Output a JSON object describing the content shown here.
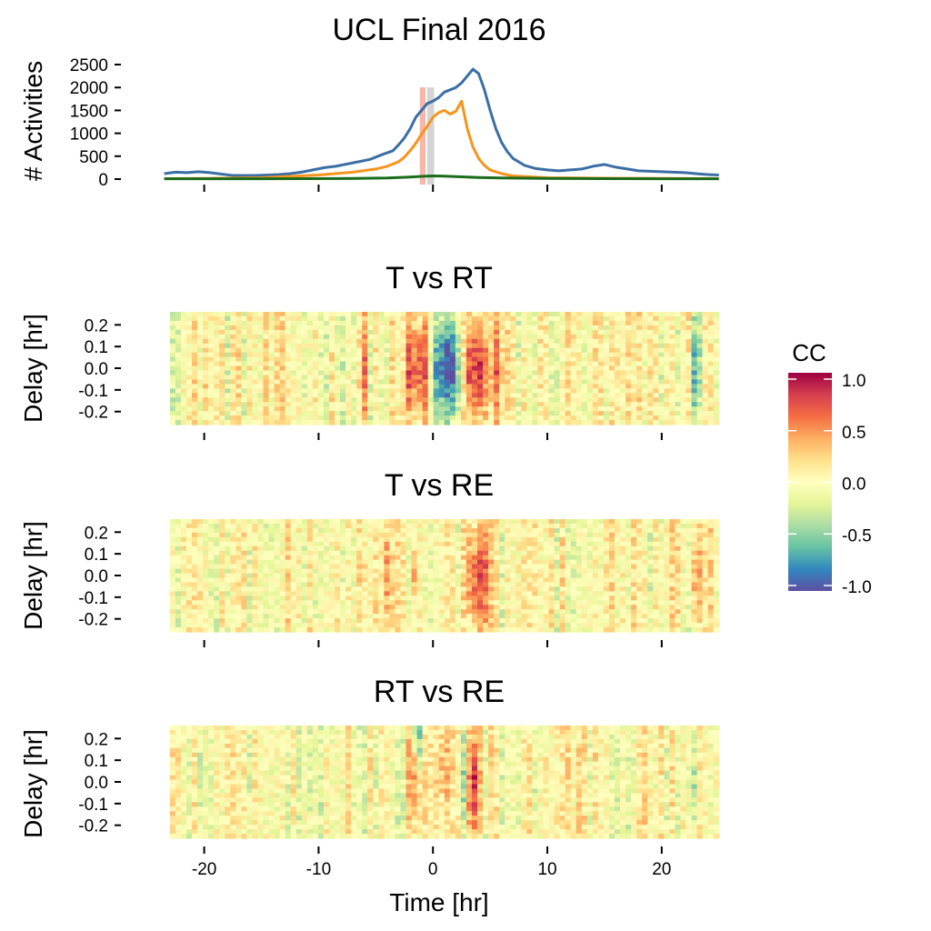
{
  "figure_title": "UCL Final 2016",
  "chart_data": [
    {
      "id": "activities",
      "type": "line",
      "title": "UCL Final 2016",
      "ylabel": "# Activities",
      "xlim": [
        -24.5,
        25.5
      ],
      "ylim": [
        0,
        2600
      ],
      "yticks": [
        0,
        500,
        1000,
        1500,
        2000,
        2500
      ],
      "xticks": [
        -20,
        -10,
        0,
        10,
        20
      ],
      "colors": {
        "blue": "#3b6ea5",
        "orange": "#f7941d",
        "green": "#1a6b1a"
      },
      "highlight_bands": [
        {
          "x": [
            -1.15,
            -0.65
          ],
          "color": "#f4a99b"
        },
        {
          "x": [
            -0.5,
            0.1
          ],
          "color": "#cccccc"
        }
      ],
      "series": [
        {
          "color": "#3b6ea5",
          "x": [
            -23.5,
            -22.5,
            -21.5,
            -20.5,
            -19.5,
            -18.5,
            -17.5,
            -16.5,
            -15.5,
            -14.5,
            -13.5,
            -12.5,
            -11.5,
            -10.5,
            -9.5,
            -8.5,
            -7.5,
            -6.5,
            -5.5,
            -4.5,
            -3.5,
            -3.0,
            -2.5,
            -2.0,
            -1.5,
            -1.0,
            -0.5,
            0.0,
            0.5,
            1.0,
            1.5,
            2.0,
            2.5,
            3.0,
            3.5,
            4.0,
            4.5,
            5.0,
            5.5,
            6.0,
            6.5,
            7.0,
            8.0,
            9.0,
            10.0,
            11.0,
            12.0,
            13.0,
            14.0,
            15.0,
            16.0,
            17.0,
            18.0,
            19.0,
            20.0,
            21.0,
            22.0,
            23.0,
            24.0,
            25.0
          ],
          "y": [
            120,
            150,
            140,
            160,
            140,
            110,
            80,
            80,
            80,
            90,
            100,
            120,
            150,
            200,
            250,
            280,
            330,
            380,
            430,
            530,
            620,
            750,
            900,
            1100,
            1350,
            1500,
            1650,
            1700,
            1780,
            1900,
            1950,
            2000,
            2100,
            2250,
            2400,
            2300,
            1950,
            1500,
            1100,
            800,
            600,
            450,
            300,
            230,
            200,
            180,
            200,
            220,
            280,
            320,
            260,
            220,
            180,
            170,
            160,
            150,
            140,
            120,
            100,
            90
          ]
        },
        {
          "color": "#f7941d",
          "x": [
            -23.5,
            -20,
            -15,
            -10,
            -7,
            -5,
            -4,
            -3,
            -2.5,
            -2,
            -1.5,
            -1,
            -0.5,
            0,
            0.5,
            1,
            1.5,
            2,
            2.5,
            3,
            3.5,
            4,
            4.5,
            5,
            6,
            7,
            10,
            15,
            20,
            25
          ],
          "y": [
            10,
            15,
            30,
            90,
            150,
            220,
            280,
            380,
            480,
            620,
            780,
            980,
            1150,
            1350,
            1450,
            1500,
            1420,
            1480,
            1700,
            1100,
            700,
            450,
            300,
            200,
            120,
            70,
            30,
            20,
            15,
            10
          ]
        },
        {
          "color": "#1a6b1a",
          "x": [
            -23.5,
            -15,
            -8,
            -4,
            -2,
            -1,
            0,
            1,
            2,
            3,
            4,
            6,
            10,
            15,
            20,
            25
          ],
          "y": [
            8,
            8,
            12,
            25,
            45,
            60,
            70,
            65,
            55,
            45,
            35,
            25,
            15,
            10,
            8,
            8
          ]
        }
      ]
    },
    {
      "id": "t_vs_rt",
      "type": "heatmap",
      "title": "T vs RT",
      "ylabel": "Delay [hr]",
      "xlim": [
        -24.5,
        25.5
      ],
      "ylim": [
        -0.26,
        0.26
      ],
      "yticks": [
        0.2,
        0.1,
        0.0,
        -0.1,
        -0.2
      ],
      "ytick_labels": [
        "0.2",
        "0.1",
        "0.0",
        "-0.1",
        "-0.2"
      ],
      "xticks": [
        -20,
        -10,
        0,
        10,
        20
      ],
      "cell_grid": {
        "x_from": -23.0,
        "x_to": 25.0,
        "x_cells": 100,
        "y_cells": 25
      },
      "features": [
        {
          "x": -1.0,
          "delay": 0.0,
          "width": 0.5,
          "value": 0.9
        },
        {
          "x": -2.0,
          "delay": 0.0,
          "width": 0.4,
          "value": 0.7
        },
        {
          "x": 0.8,
          "delay": 0.0,
          "width": 1.0,
          "value": -0.9
        },
        {
          "x": 1.8,
          "delay": 0.0,
          "width": 0.5,
          "value": -0.7
        },
        {
          "x": 3.4,
          "delay": 0.0,
          "width": 0.5,
          "value": 0.85
        },
        {
          "x": 4.2,
          "delay": 0.0,
          "width": 0.5,
          "value": 0.7
        },
        {
          "x": 5.5,
          "delay": 0.0,
          "width": 0.6,
          "value": 0.5
        },
        {
          "x": -6.0,
          "delay": 0.0,
          "width": 0.4,
          "value": 0.45
        },
        {
          "x": 23.0,
          "delay": 0.0,
          "width": 0.4,
          "value": -0.5
        },
        {
          "x": -20.0,
          "delay": 0.0,
          "width": 0.5,
          "value": 0.25
        }
      ],
      "noise_amplitude": 0.2
    },
    {
      "id": "t_vs_re",
      "type": "heatmap",
      "title": "T vs RE",
      "ylabel": "Delay [hr]",
      "xlim": [
        -24.5,
        25.5
      ],
      "ylim": [
        -0.26,
        0.26
      ],
      "yticks": [
        0.2,
        0.1,
        0.0,
        -0.1,
        -0.2
      ],
      "ytick_labels": [
        "0.2",
        "0.1",
        "0.0",
        "-0.1",
        "-0.2"
      ],
      "xticks": [
        -20,
        -10,
        0,
        10,
        20
      ],
      "cell_grid": {
        "x_from": -23.0,
        "x_to": 25.0,
        "x_cells": 100,
        "y_cells": 25
      },
      "features": [
        {
          "x": -1.5,
          "delay": 0.0,
          "width": 0.4,
          "value": 0.6
        },
        {
          "x": -1.0,
          "delay": 0.0,
          "width": 0.4,
          "value": -0.4
        },
        {
          "x": 3.5,
          "delay": 0.0,
          "width": 0.6,
          "value": 0.7
        },
        {
          "x": 4.5,
          "delay": 0.0,
          "width": 0.5,
          "value": 0.55
        },
        {
          "x": 23.0,
          "delay": 0.0,
          "width": 0.5,
          "value": 0.55
        },
        {
          "x": -6.0,
          "delay": 0.0,
          "width": 0.4,
          "value": 0.35
        },
        {
          "x": -4.0,
          "delay": 0.0,
          "width": 0.4,
          "value": 0.4
        }
      ],
      "noise_amplitude": 0.2
    },
    {
      "id": "rt_vs_re",
      "type": "heatmap",
      "title": "RT vs RE",
      "ylabel": "Delay [hr]",
      "xlabel": "Time [hr]",
      "xlim": [
        -24.5,
        25.5
      ],
      "ylim": [
        -0.26,
        0.26
      ],
      "yticks": [
        0.2,
        0.1,
        0.0,
        -0.1,
        -0.2
      ],
      "ytick_labels": [
        "0.2",
        "0.1",
        "0.0",
        "-0.1",
        "-0.2"
      ],
      "xticks": [
        -20,
        -10,
        0,
        10,
        20
      ],
      "xtick_labels": [
        "-20",
        "-10",
        "0",
        "10",
        "20"
      ],
      "cell_grid": {
        "x_from": -23.0,
        "x_to": 25.0,
        "x_cells": 100,
        "y_cells": 25
      },
      "features": [
        {
          "x": -1.5,
          "delay": 0.0,
          "width": 0.5,
          "value": 0.75
        },
        {
          "x": -1.3,
          "delay": 0.22,
          "width": 0.3,
          "value": -0.7
        },
        {
          "x": 3.5,
          "delay": 0.0,
          "width": 0.5,
          "value": 0.8
        },
        {
          "x": 2.8,
          "delay": 0.0,
          "width": 0.5,
          "value": -0.4
        },
        {
          "x": 22.8,
          "delay": 0.0,
          "width": 0.3,
          "value": -0.45
        },
        {
          "x": 1.0,
          "delay": 0.05,
          "width": 0.8,
          "value": 0.35
        }
      ],
      "noise_amplitude": 0.2
    }
  ],
  "colorbar": {
    "title": "CC",
    "min": -1.0,
    "max": 1.0,
    "ticks": [
      1.0,
      0.5,
      0.0,
      -0.5,
      -1.0
    ],
    "tick_labels": [
      "1.0",
      "0.5",
      "0.0",
      "-0.5",
      "-1.0"
    ],
    "colormap": [
      "#5e4fa2",
      "#3288bd",
      "#66c2a5",
      "#abdda4",
      "#e6f598",
      "#ffffbf",
      "#fee08b",
      "#fdae61",
      "#f46d43",
      "#d53e4f",
      "#9e0142"
    ]
  }
}
